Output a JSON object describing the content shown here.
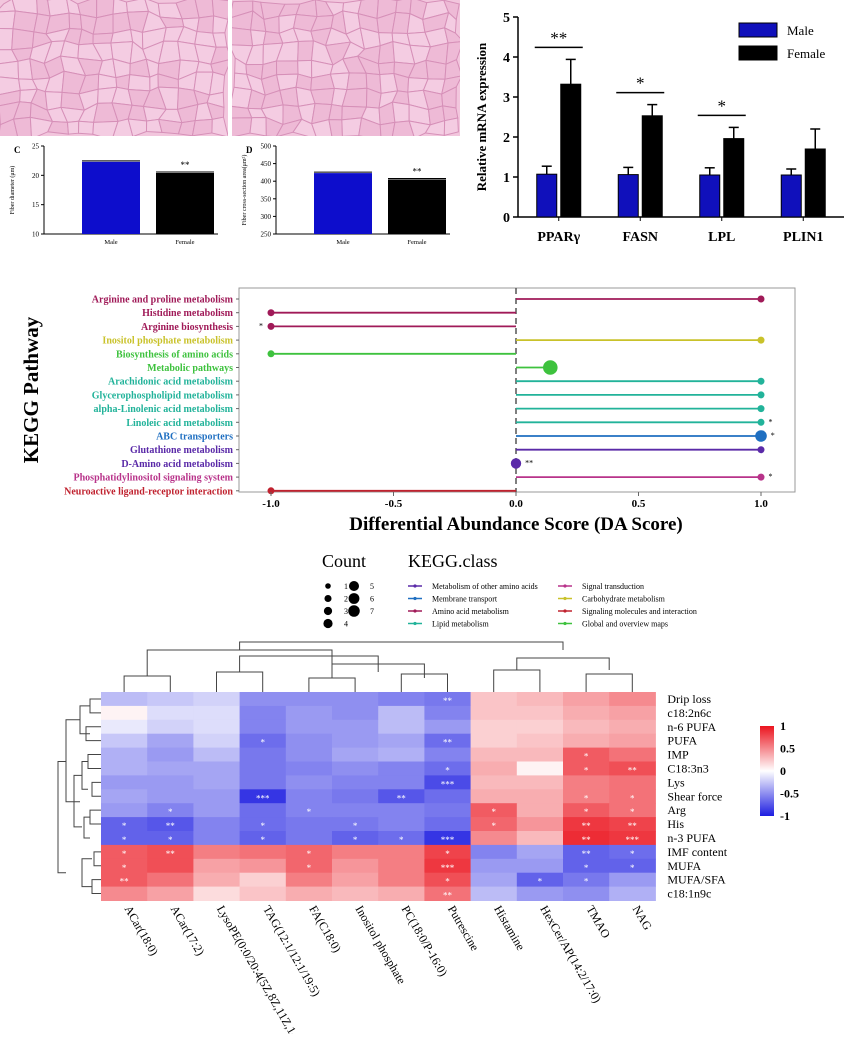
{
  "histology": {
    "scale_left": "",
    "scale_right": ""
  },
  "panel_c": {
    "letter": "C",
    "ylabel": "Fiber diameter (μm)",
    "ylim": [
      10,
      25
    ],
    "yticks": [
      "10",
      "15",
      "20",
      "25"
    ],
    "categories": [
      "Male",
      "Female"
    ],
    "values": [
      22.3,
      20.4
    ],
    "colors": [
      "#0d0dcc",
      "#000000"
    ],
    "sig": "**"
  },
  "panel_d": {
    "letter": "D",
    "ylabel": "Fiber cross-section area(μm²)",
    "ylim": [
      250,
      500
    ],
    "yticks": [
      "250",
      "300",
      "350",
      "400",
      "450",
      "500"
    ],
    "categories": [
      "Male",
      "Female"
    ],
    "values": [
      423,
      405
    ],
    "colors": [
      "#0d0dcc",
      "#000000"
    ],
    "sig": "**"
  },
  "mrna": {
    "ylabel": "Relative mRNA expression",
    "ylim": [
      0,
      5
    ],
    "yticks": [
      "0",
      "1",
      "2",
      "3",
      "4",
      "5"
    ],
    "categories": [
      "PPARγ",
      "FASN",
      "LPL",
      "PLIN1"
    ],
    "legend": [
      "Male",
      "Female"
    ],
    "male": [
      1.07,
      1.06,
      1.05,
      1.05
    ],
    "male_err": [
      0.2,
      0.18,
      0.18,
      0.15
    ],
    "female": [
      3.32,
      2.53,
      1.96,
      1.7
    ],
    "female_err": [
      0.62,
      0.28,
      0.28,
      0.5
    ],
    "sig": [
      "**",
      "*",
      "*",
      ""
    ],
    "colors": {
      "male": "#1010bb",
      "female": "#000000"
    }
  },
  "kegg": {
    "ylabel": "KEGG Pathway",
    "xlabel": "Differential Abundance Score (DA Score)",
    "xticks": [
      "-1.0",
      "-0.5",
      "0.0",
      "0.5",
      "1.0"
    ],
    "pathways": [
      {
        "name": "Arginine and proline metabolism",
        "score": 1.0,
        "count": 1,
        "cls": "Amino acid metabolism",
        "color": "#a01a58",
        "mark": ""
      },
      {
        "name": "Histidine metabolism",
        "score": -1.0,
        "count": 1,
        "cls": "Amino acid metabolism",
        "color": "#a01a58",
        "mark": ""
      },
      {
        "name": "Arginine biosynthesis",
        "score": -1.0,
        "count": 1,
        "cls": "Amino acid metabolism",
        "color": "#a01a58",
        "mark": "*"
      },
      {
        "name": "Inositol phosphate metabolism",
        "score": 1.0,
        "count": 1,
        "cls": "Carbohydrate metabolism",
        "color": "#c9c22a",
        "mark": ""
      },
      {
        "name": "Biosynthesis of amino acids",
        "score": -1.0,
        "count": 1,
        "cls": "Global and overview maps",
        "color": "#3ec23e",
        "mark": ""
      },
      {
        "name": "Metabolic pathways",
        "score": 0.14,
        "count": 7,
        "cls": "Global and overview maps",
        "color": "#3ec23e",
        "mark": ""
      },
      {
        "name": "Arachidonic acid metabolism",
        "score": 1.0,
        "count": 1,
        "cls": "Lipid metabolism",
        "color": "#22b39a",
        "mark": ""
      },
      {
        "name": "Glycerophospholipid metabolism",
        "score": 1.0,
        "count": 1,
        "cls": "Lipid metabolism",
        "color": "#22b39a",
        "mark": ""
      },
      {
        "name": "alpha-Linolenic acid metabolism",
        "score": 1.0,
        "count": 1,
        "cls": "Lipid metabolism",
        "color": "#22b39a",
        "mark": ""
      },
      {
        "name": "Linoleic acid metabolism",
        "score": 1.0,
        "count": 1,
        "cls": "Lipid metabolism",
        "color": "#22b39a",
        "mark": "*"
      },
      {
        "name": "ABC transporters",
        "score": 1.0,
        "count": 4,
        "cls": "Membrane transport",
        "color": "#1f6fc1",
        "mark": "*"
      },
      {
        "name": "Glutathione metabolism",
        "score": 1.0,
        "count": 1,
        "cls": "Metabolism of other amino acids",
        "color": "#5a2aa8",
        "mark": ""
      },
      {
        "name": "D-Amino acid metabolism",
        "score": 0.0,
        "count": 3,
        "cls": "Metabolism of other amino acids",
        "color": "#5a2aa8",
        "mark": "**"
      },
      {
        "name": "Phosphatidylinositol signaling system",
        "score": 1.0,
        "count": 1,
        "cls": "Signal transduction",
        "color": "#b8338a",
        "mark": "*"
      },
      {
        "name": "Neuroactive ligand-receptor interaction",
        "score": -1.0,
        "count": 1,
        "cls": "Signaling molecules and interaction",
        "color": "#c0222f",
        "mark": ""
      }
    ],
    "legend_count_title": "Count",
    "legend_class_title": "KEGG.class",
    "count_labels": [
      "1",
      "2",
      "3",
      "4",
      "5",
      "6",
      "7"
    ],
    "class_labels": [
      {
        "label": "Metabolism of other amino acids",
        "color": "#5a2aa8"
      },
      {
        "label": "Membrane transport",
        "color": "#1f6fc1"
      },
      {
        "label": "Amino acid metabolism",
        "color": "#a01a58"
      },
      {
        "label": "Lipid metabolism",
        "color": "#22b39a"
      },
      {
        "label": "Signal transduction",
        "color": "#b8338a"
      },
      {
        "label": "Carbohydrate metabolism",
        "color": "#c9c22a"
      },
      {
        "label": "Signaling molecules and interaction",
        "color": "#c0222f"
      },
      {
        "label": "Global and overview maps",
        "color": "#3ec23e"
      }
    ]
  },
  "chart_data": [
    {
      "type": "bar",
      "categories": [
        "Male",
        "Female"
      ],
      "values": [
        22.3,
        20.4
      ],
      "ylabel": "Fiber diameter (μm)",
      "ylim": [
        10,
        25
      ]
    },
    {
      "type": "bar",
      "categories": [
        "Male",
        "Female"
      ],
      "values": [
        423,
        405
      ],
      "ylabel": "Fiber cross-section area(μm²)",
      "ylim": [
        250,
        500
      ]
    },
    {
      "type": "bar",
      "categories": [
        "PPARγ",
        "FASN",
        "LPL",
        "PLIN1"
      ],
      "series": [
        {
          "name": "Male",
          "values": [
            1.07,
            1.06,
            1.05,
            1.05
          ]
        },
        {
          "name": "Female",
          "values": [
            3.32,
            2.53,
            1.96,
            1.7
          ]
        }
      ],
      "ylabel": "Relative mRNA expression",
      "ylim": [
        0,
        5
      ]
    },
    {
      "type": "scatter",
      "xlabel": "Differential Abundance Score (DA Score)",
      "ylabel": "KEGG Pathway",
      "xlim": [
        -1.0,
        1.0
      ]
    },
    {
      "type": "heatmap",
      "columns": [
        "ACar(18:0)",
        "ACar(17:2)",
        "LysoPE(0:0/20:4(5Z,8Z,11Z,14Z))",
        "TAG(12:1/12:1/19:5)",
        "FA(C18:0)",
        "Inositol phosphate",
        "PC(18:0/P-16:0)",
        "Putrescine",
        "Histamine",
        "HexCer/AP(14:2/17:0)",
        "TMAO",
        "NAG"
      ],
      "rows": [
        "Drip loss",
        "c18:2n6c",
        "n-6 PUFA",
        "PUFA",
        "IMP",
        "C18:3n3",
        "Lys",
        "Shear force",
        "Arg",
        "His",
        "n-3 PUFA",
        "IMF content",
        "MUFA",
        "MUFA/SFA",
        "c18:1n9c"
      ],
      "values": [
        [
          -0.3,
          -0.25,
          -0.2,
          -0.5,
          -0.5,
          -0.5,
          -0.55,
          -0.6,
          0.25,
          0.3,
          0.4,
          0.5
        ],
        [
          0.05,
          -0.15,
          -0.15,
          -0.55,
          -0.45,
          -0.5,
          -0.3,
          -0.55,
          0.25,
          0.25,
          0.35,
          0.4
        ],
        [
          -0.1,
          -0.2,
          -0.15,
          -0.55,
          -0.45,
          -0.45,
          -0.3,
          -0.45,
          0.2,
          0.2,
          0.3,
          0.35
        ],
        [
          -0.25,
          -0.4,
          -0.2,
          -0.65,
          -0.5,
          -0.45,
          -0.4,
          -0.65,
          0.2,
          0.25,
          0.35,
          0.4
        ],
        [
          -0.35,
          -0.45,
          -0.3,
          -0.6,
          -0.5,
          -0.4,
          -0.35,
          -0.55,
          0.3,
          0.3,
          0.7,
          0.6
        ],
        [
          -0.35,
          -0.4,
          -0.4,
          -0.6,
          -0.55,
          -0.5,
          -0.55,
          -0.65,
          0.35,
          0.05,
          0.7,
          0.75
        ],
        [
          -0.45,
          -0.45,
          -0.4,
          -0.6,
          -0.5,
          -0.55,
          -0.55,
          -0.8,
          0.3,
          0.3,
          0.55,
          0.6
        ],
        [
          -0.4,
          -0.45,
          -0.45,
          -0.9,
          -0.55,
          -0.6,
          -0.75,
          -0.65,
          0.35,
          0.35,
          0.55,
          0.6
        ],
        [
          -0.45,
          -0.55,
          -0.45,
          -0.65,
          -0.55,
          -0.55,
          -0.55,
          -0.6,
          0.7,
          0.35,
          0.7,
          0.6
        ],
        [
          -0.7,
          -0.75,
          -0.55,
          -0.65,
          -0.6,
          -0.6,
          -0.55,
          -0.65,
          0.65,
          0.45,
          0.85,
          0.8
        ],
        [
          -0.7,
          -0.7,
          -0.55,
          -0.7,
          -0.6,
          -0.7,
          -0.65,
          -0.9,
          0.5,
          0.3,
          0.9,
          0.85
        ],
        [
          0.7,
          0.75,
          0.55,
          0.6,
          0.65,
          0.55,
          0.55,
          0.8,
          -0.55,
          -0.4,
          -0.7,
          -0.65
        ],
        [
          0.7,
          0.75,
          0.4,
          0.45,
          0.65,
          0.45,
          0.55,
          0.85,
          -0.45,
          -0.45,
          -0.7,
          -0.7
        ],
        [
          0.7,
          0.6,
          0.35,
          0.2,
          0.55,
          0.4,
          0.55,
          0.75,
          -0.4,
          -0.7,
          -0.6,
          -0.45
        ],
        [
          0.5,
          0.4,
          0.15,
          0.25,
          0.35,
          0.3,
          0.35,
          0.6,
          -0.3,
          -0.45,
          -0.5,
          -0.35
        ]
      ],
      "sig": [
        [
          "",
          "",
          "",
          "",
          "",
          "",
          "",
          "**",
          "",
          "",
          "",
          ""
        ],
        [
          "",
          "",
          "",
          "",
          "",
          "",
          "",
          "",
          "",
          "",
          "",
          ""
        ],
        [
          "",
          "",
          "",
          "",
          "",
          "",
          "",
          "",
          "",
          "",
          "",
          ""
        ],
        [
          "",
          "",
          "",
          "*",
          "",
          "",
          "",
          "**",
          "",
          "",
          "",
          ""
        ],
        [
          "",
          "",
          "",
          "",
          "",
          "",
          "",
          "",
          "",
          "",
          "*",
          ""
        ],
        [
          "",
          "",
          "",
          "",
          "",
          "",
          "",
          "*",
          "",
          "",
          "*",
          "**"
        ],
        [
          "",
          "",
          "",
          "",
          "",
          "",
          "",
          "***",
          "",
          "",
          "",
          ""
        ],
        [
          "",
          "",
          "",
          "***",
          "",
          "",
          "**",
          "",
          "",
          "",
          "*",
          "*"
        ],
        [
          "",
          "*",
          "",
          "",
          "*",
          "",
          "",
          "",
          "*",
          "",
          "*",
          "*"
        ],
        [
          "*",
          "**",
          "",
          "*",
          "",
          "*",
          "",
          "",
          "*",
          "",
          "**",
          "**"
        ],
        [
          "*",
          "*",
          "",
          "*",
          "",
          "*",
          "*",
          "***",
          "",
          "",
          "**",
          "***"
        ],
        [
          "*",
          "**",
          "",
          "",
          "*",
          "",
          "",
          "*",
          "",
          "",
          "**",
          "*"
        ],
        [
          "*",
          "",
          "",
          "",
          "*",
          "",
          "",
          "***",
          "",
          "",
          "*",
          "*"
        ],
        [
          "**",
          "",
          "",
          "",
          "",
          "",
          "",
          "*",
          "",
          "*",
          "*",
          ""
        ],
        [
          "",
          "",
          "",
          "",
          "",
          "",
          "",
          "**",
          "",
          "",
          "",
          ""
        ]
      ],
      "legend_ticks": [
        "1",
        "0.5",
        "0",
        "-0.5",
        "-1"
      ]
    }
  ]
}
